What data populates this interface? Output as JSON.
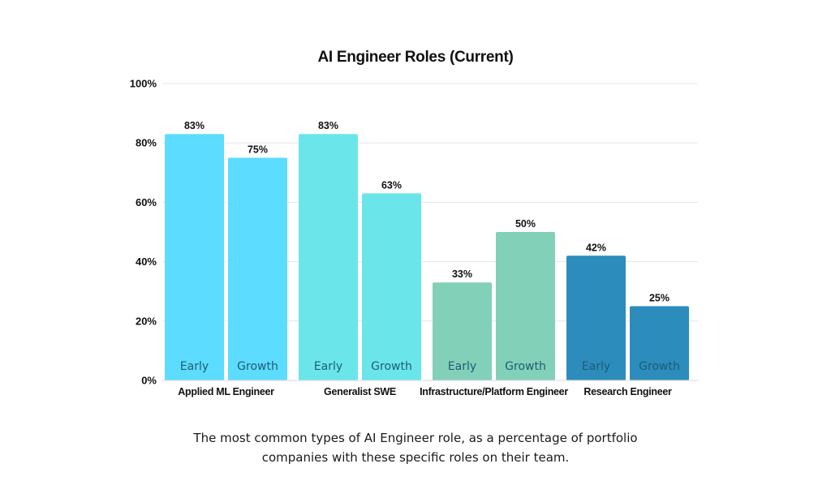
{
  "chart_data": {
    "type": "bar",
    "title": "AI Engineer Roles (Current)",
    "categories": [
      "Applied ML Engineer",
      "Generalist SWE",
      "Infrastructure/Platform Engineer",
      "Research Engineer"
    ],
    "series": [
      {
        "name": "Early",
        "values": [
          83,
          83,
          33,
          42
        ],
        "labels": [
          "83%",
          "83%",
          "33%",
          "42%"
        ]
      },
      {
        "name": "Growth",
        "values": [
          75,
          63,
          50,
          25
        ],
        "labels": [
          "75%",
          "63%",
          "50%",
          "25%"
        ]
      }
    ],
    "colors": [
      "#5cdcff",
      "#6ae6ea",
      "#82d0b8",
      "#2c8cbc"
    ],
    "ylim": [
      0,
      100
    ],
    "yticks": [
      0,
      20,
      40,
      60,
      80,
      100
    ],
    "ytick_labels": [
      "0%",
      "20%",
      "40%",
      "60%",
      "80%",
      "100%"
    ],
    "grid": true,
    "legend": "none"
  },
  "caption": {
    "line1": "The most common types of AI Engineer role, as a percentage of portfolio",
    "line2": "companies with these specific roles on their team."
  }
}
